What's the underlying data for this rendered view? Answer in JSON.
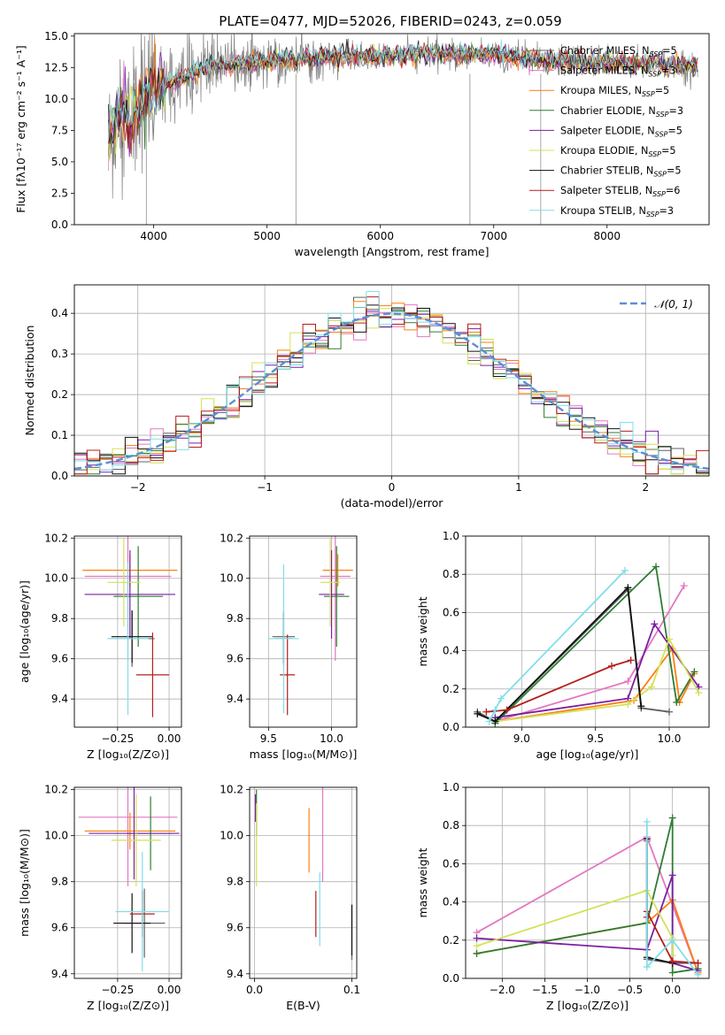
{
  "figure": {
    "title": "PLATE=0477, MJD=52026, FIBERID=0243, z=0.059"
  },
  "colors": {
    "grid": "#b0b0b0",
    "gauss": "#5b8fd6",
    "models": [
      "#606060",
      "#e377c2",
      "#ff7f0e",
      "#2e7d32",
      "#7b1fa2",
      "#d4e157",
      "#111111",
      "#b71c1c",
      "#80deea"
    ]
  },
  "chart_data": [
    {
      "id": "spectrum",
      "type": "line",
      "xlabel": "wavelength [Angstrom, rest frame]",
      "ylabel": "Flux [fλ10⁻¹⁷ erg cm⁻² s⁻¹ A⁻¹]",
      "xlim": [
        3300,
        8900
      ],
      "ylim": [
        0,
        15.2
      ],
      "xticks": [
        4000,
        5000,
        6000,
        7000,
        8000
      ],
      "yticks": [
        0.0,
        2.5,
        5.0,
        7.5,
        10.0,
        12.5,
        15.0
      ],
      "x_range": [
        3600,
        8800
      ],
      "continuum": {
        "x": [
          3600,
          3700,
          3800,
          3900,
          4000,
          4200,
          4500,
          5000,
          5500,
          6000,
          6500,
          7000,
          7500,
          8000,
          8500,
          8800
        ],
        "y": [
          6.5,
          9.0,
          8.0,
          10.0,
          10.6,
          11.5,
          12.6,
          13.0,
          13.3,
          13.4,
          13.6,
          13.5,
          13.0,
          12.9,
          12.8,
          12.5
        ]
      },
      "legend": [
        "Chabrier MILES, N_SSP=5",
        "Salpeter MILES, N_SSP=3",
        "Kroupa MILES, N_SSP=5",
        "Chabrier ELODIE, N_SSP=3",
        "Salpeter ELODIE, N_SSP=5",
        "Kroupa ELODIE, N_SSP=5",
        "Chabrier STELIB, N_SSP=5",
        "Salpeter STELIB, N_SSP=6",
        "Kroupa STELIB, N_SSP=3"
      ]
    },
    {
      "id": "residuals",
      "type": "step",
      "xlabel": "(data-model)/error",
      "ylabel": "Normed distribution",
      "xlim": [
        -2.5,
        2.5
      ],
      "ylim": [
        0,
        0.47
      ],
      "xticks": [
        -2,
        -1,
        0,
        1,
        2
      ],
      "yticks": [
        0.0,
        0.1,
        0.2,
        0.3,
        0.4
      ],
      "bin_width": 0.1,
      "legend": "𝒩(0, 1)"
    },
    {
      "id": "age-vs-Z",
      "type": "errorbar",
      "xlabel": "Z [log₁₀(Z/Z⊙)]",
      "ylabel": "age [log₁₀(age/yr)]",
      "xlim": [
        -0.46,
        0.06
      ],
      "ylim": [
        9.26,
        10.21
      ],
      "xticks": [
        -0.25,
        0.0
      ],
      "yticks": [
        9.4,
        9.6,
        9.8,
        10.0,
        10.2
      ],
      "points": [
        {
          "x": -0.18,
          "y": 9.7,
          "xerr": 0.11,
          "yerr": 0.14,
          "c": 0
        },
        {
          "x": -0.2,
          "y": 10.01,
          "xerr": 0.21,
          "yerr": 0.42,
          "c": 1
        },
        {
          "x": -0.19,
          "y": 10.04,
          "xerr": 0.23,
          "yerr": 0.08,
          "c": 2
        },
        {
          "x": -0.15,
          "y": 9.91,
          "xerr": 0.12,
          "yerr": 0.25,
          "c": 3
        },
        {
          "x": -0.19,
          "y": 9.92,
          "xerr": 0.22,
          "yerr": 0.22,
          "c": 4
        },
        {
          "x": -0.22,
          "y": 9.98,
          "xerr": 0.08,
          "yerr": 0.22,
          "c": 5
        },
        {
          "x": -0.18,
          "y": 9.71,
          "xerr": 0.1,
          "yerr": 0.13,
          "c": 6
        },
        {
          "x": -0.08,
          "y": 9.52,
          "xerr": 0.08,
          "yerr": 0.21,
          "c": 7
        },
        {
          "x": -0.2,
          "y": 9.7,
          "xerr": 0.1,
          "yerr": 0.38,
          "c": 8
        }
      ]
    },
    {
      "id": "age-vs-mass",
      "type": "errorbar",
      "xlabel": "mass [log₁₀(M/M⊙)]",
      "ylabel": "",
      "xlim": [
        9.35,
        10.2
      ],
      "ylim": [
        9.26,
        10.21
      ],
      "xticks": [
        9.5,
        10.0
      ],
      "yticks": [
        9.4,
        9.6,
        9.8,
        10.0,
        10.2
      ],
      "points": [
        {
          "x": 9.62,
          "y": 9.71,
          "xerr": 0.09,
          "yerr": 0.13,
          "c": 0
        },
        {
          "x": 10.03,
          "y": 10.01,
          "xerr": 0.12,
          "yerr": 0.42,
          "c": 1
        },
        {
          "x": 10.05,
          "y": 10.04,
          "xerr": 0.12,
          "yerr": 0.08,
          "c": 2
        },
        {
          "x": 10.04,
          "y": 9.91,
          "xerr": 0.1,
          "yerr": 0.25,
          "c": 3
        },
        {
          "x": 10.0,
          "y": 9.92,
          "xerr": 0.1,
          "yerr": 0.22,
          "c": 4
        },
        {
          "x": 9.99,
          "y": 9.98,
          "xerr": 0.08,
          "yerr": 0.22,
          "c": 5
        },
        {
          "x": 9.62,
          "y": 9.7,
          "xerr": 0.07,
          "yerr": 0.13,
          "c": 6
        },
        {
          "x": 9.65,
          "y": 9.52,
          "xerr": 0.06,
          "yerr": 0.2,
          "c": 7
        },
        {
          "x": 9.62,
          "y": 9.7,
          "xerr": 0.12,
          "yerr": 0.37,
          "c": 8
        }
      ]
    },
    {
      "id": "weight-vs-age",
      "type": "line",
      "xlabel": "age  [log₁₀(age/yr)]",
      "ylabel": "mass weight",
      "xlim": [
        8.62,
        10.27
      ],
      "ylim": [
        0,
        1.0
      ],
      "xticks": [
        9.0,
        9.5,
        10.0
      ],
      "yticks": [
        0.0,
        0.2,
        0.4,
        0.6,
        0.8,
        1.0
      ],
      "series": [
        {
          "c": 0,
          "x": [
            8.7,
            8.82,
            9.72,
            9.81,
            10.0
          ],
          "y": [
            0.08,
            0.03,
            0.72,
            0.1,
            0.08
          ]
        },
        {
          "c": 1,
          "x": [
            8.82,
            9.72,
            10.1
          ],
          "y": [
            0.03,
            0.24,
            0.74
          ]
        },
        {
          "c": 2,
          "x": [
            8.82,
            9.76,
            10.02,
            10.07,
            10.17
          ],
          "y": [
            0.03,
            0.14,
            0.41,
            0.13,
            0.28
          ]
        },
        {
          "c": 3,
          "x": [
            8.82,
            9.91,
            10.05,
            10.17
          ],
          "y": [
            0.02,
            0.84,
            0.13,
            0.29
          ]
        },
        {
          "c": 4,
          "x": [
            8.82,
            9.72,
            9.9,
            10.2
          ],
          "y": [
            0.05,
            0.15,
            0.54,
            0.21
          ]
        },
        {
          "c": 5,
          "x": [
            8.82,
            9.72,
            9.88,
            10.0,
            10.2
          ],
          "y": [
            0.03,
            0.12,
            0.21,
            0.46,
            0.18
          ]
        },
        {
          "c": 6,
          "x": [
            8.7,
            8.82,
            9.72,
            9.81
          ],
          "y": [
            0.07,
            0.03,
            0.73,
            0.11
          ]
        },
        {
          "c": 7,
          "x": [
            8.76,
            8.9,
            9.61,
            9.74
          ],
          "y": [
            0.08,
            0.09,
            0.32,
            0.35
          ]
        },
        {
          "c": 8,
          "x": [
            8.78,
            8.82,
            8.86,
            9.7
          ],
          "y": [
            0.03,
            0.09,
            0.15,
            0.82
          ]
        }
      ]
    },
    {
      "id": "mass-vs-Z",
      "type": "errorbar",
      "xlabel": "Z [log₁₀(Z/Z⊙)]",
      "ylabel": "mass [log₁₀(M/M⊙)]",
      "xlim": [
        -0.46,
        0.06
      ],
      "ylim": [
        9.38,
        10.21
      ],
      "xticks": [
        -0.25,
        0.0
      ],
      "yticks": [
        9.4,
        9.6,
        9.8,
        10.0,
        10.2
      ],
      "points": [
        {
          "x": -0.12,
          "y": 9.62,
          "xerr": 0.1,
          "yerr": 0.15,
          "c": 0
        },
        {
          "x": -0.2,
          "y": 10.08,
          "xerr": 0.24,
          "yerr": 0.3,
          "c": 1
        },
        {
          "x": -0.19,
          "y": 10.02,
          "xerr": 0.22,
          "yerr": 0.08,
          "c": 2
        },
        {
          "x": -0.09,
          "y": 10.01,
          "xerr": 0.11,
          "yerr": 0.16,
          "c": 3
        },
        {
          "x": -0.17,
          "y": 10.01,
          "xerr": 0.22,
          "yerr": 0.2,
          "c": 4
        },
        {
          "x": -0.16,
          "y": 9.98,
          "xerr": 0.12,
          "yerr": 0.2,
          "c": 5
        },
        {
          "x": -0.18,
          "y": 9.62,
          "xerr": 0.09,
          "yerr": 0.13,
          "c": 6
        },
        {
          "x": -0.13,
          "y": 9.66,
          "xerr": 0.06,
          "yerr": 0.1,
          "c": 7
        },
        {
          "x": -0.13,
          "y": 9.67,
          "xerr": 0.13,
          "yerr": 0.26,
          "c": 8
        }
      ]
    },
    {
      "id": "mass-vs-EBV",
      "type": "errorbar",
      "xlabel": "E(B-V)",
      "ylabel": "",
      "xlim": [
        -0.005,
        0.105
      ],
      "ylim": [
        9.38,
        10.21
      ],
      "xticks": [
        0.0,
        0.1
      ],
      "yticks": [
        9.4,
        9.6,
        9.8,
        10.0,
        10.2
      ],
      "points": [
        {
          "x": 0.1,
          "y": 9.58,
          "xerr": 0,
          "yerr": 0.12,
          "c": 0
        },
        {
          "x": 0.07,
          "y": 10.02,
          "xerr": 0,
          "yerr": 0.22,
          "c": 1
        },
        {
          "x": 0.056,
          "y": 9.98,
          "xerr": 0,
          "yerr": 0.14,
          "c": 2
        },
        {
          "x": 0.002,
          "y": 10.1,
          "xerr": 0,
          "yerr": 0.1,
          "c": 3
        },
        {
          "x": 0.001,
          "y": 10.12,
          "xerr": 0,
          "yerr": 0.06,
          "c": 4
        },
        {
          "x": 0.002,
          "y": 9.96,
          "xerr": 0,
          "yerr": 0.18,
          "c": 5
        },
        {
          "x": 0.1,
          "y": 9.59,
          "xerr": 0,
          "yerr": 0.11,
          "c": 6
        },
        {
          "x": 0.063,
          "y": 9.66,
          "xerr": 0,
          "yerr": 0.1,
          "c": 7
        },
        {
          "x": 0.067,
          "y": 9.68,
          "xerr": 0,
          "yerr": 0.16,
          "c": 8
        }
      ]
    },
    {
      "id": "weight-vs-Z",
      "type": "line",
      "xlabel": "Z [log₁₀(Z/Z⊙)]",
      "ylabel": "mass weight",
      "xlim": [
        -2.43,
        0.43
      ],
      "ylim": [
        0,
        1.0
      ],
      "xticks": [
        -2.0,
        -1.5,
        -1.0,
        -0.5,
        0.0
      ],
      "yticks": [
        0.0,
        0.2,
        0.4,
        0.6,
        0.8,
        1.0
      ],
      "series": [
        {
          "c": 0,
          "x": [
            -0.3,
            -0.3,
            0.0,
            0.3
          ],
          "y": [
            0.72,
            0.1,
            0.08,
            0.08
          ]
        },
        {
          "c": 1,
          "x": [
            -2.3,
            -0.3,
            0.3
          ],
          "y": [
            0.24,
            0.74,
            0.03
          ]
        },
        {
          "c": 2,
          "x": [
            -2.3,
            -0.3,
            0.0,
            0.3
          ],
          "y": [
            0.13,
            0.29,
            0.41,
            0.03
          ]
        },
        {
          "c": 3,
          "x": [
            -2.3,
            -0.3,
            0.0,
            0.0,
            0.3
          ],
          "y": [
            0.13,
            0.29,
            0.84,
            0.03,
            0.05
          ]
        },
        {
          "c": 4,
          "x": [
            -2.3,
            -0.3,
            0.0,
            0.0,
            0.3
          ],
          "y": [
            0.21,
            0.15,
            0.54,
            0.08,
            0.04
          ]
        },
        {
          "c": 5,
          "x": [
            -2.3,
            -0.3,
            0.0,
            0.0
          ],
          "y": [
            0.17,
            0.46,
            0.21,
            0.12
          ]
        },
        {
          "c": 6,
          "x": [
            -0.3,
            -0.3,
            0.0
          ],
          "y": [
            0.73,
            0.11,
            0.08
          ]
        },
        {
          "c": 7,
          "x": [
            -0.3,
            -0.3,
            0.0,
            0.3
          ],
          "y": [
            0.32,
            0.35,
            0.09,
            0.08
          ]
        },
        {
          "c": 8,
          "x": [
            -0.3,
            -0.3,
            0.0,
            0.3
          ],
          "y": [
            0.82,
            0.06,
            0.2,
            0.02
          ]
        }
      ]
    }
  ]
}
